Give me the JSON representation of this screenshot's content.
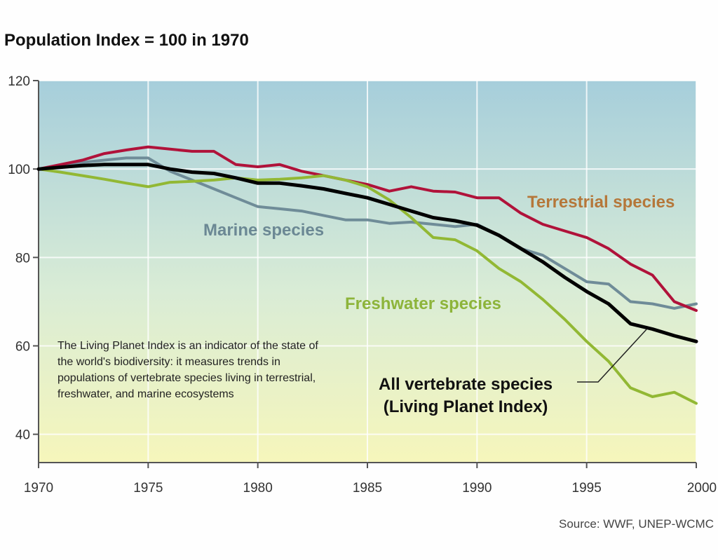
{
  "title": "Population Index = 100 in 1970",
  "source": "Source: WWF, UNEP-WCMC",
  "note": "The Living Planet Index is an indicator of the state of the world's biodiversity: it measures trends in populations of vertebrate species living in terrestrial, freshwater, and marine ecosystems",
  "labels": {
    "terrestrial": "Terrestrial species",
    "marine": "Marine species",
    "freshwater": "Freshwater species",
    "all_line1": "All vertebrate species",
    "all_line2": "(Living Planet Index)"
  },
  "chart_data": {
    "type": "line",
    "title": "Population Index = 100 in 1970",
    "xlabel": "",
    "ylabel": "",
    "xlim": [
      1970,
      2000
    ],
    "ylim": [
      33.6,
      120
    ],
    "xticks": [
      1970,
      1975,
      1980,
      1985,
      1990,
      1995,
      2000
    ],
    "yticks": [
      40,
      60,
      80,
      100,
      120
    ],
    "grid": true,
    "x": [
      1970,
      1971,
      1972,
      1973,
      1974,
      1975,
      1976,
      1977,
      1978,
      1979,
      1980,
      1981,
      1982,
      1983,
      1984,
      1985,
      1986,
      1987,
      1988,
      1989,
      1990,
      1991,
      1992,
      1993,
      1994,
      1995,
      1996,
      1997,
      1998,
      1999,
      2000
    ],
    "series": [
      {
        "name": "Terrestrial species",
        "color": "#b0123a",
        "values": [
          100,
          101,
          102,
          103.5,
          104.3,
          105,
          104.5,
          104,
          104,
          101,
          100.5,
          101,
          99.5,
          98.5,
          97.5,
          96.5,
          95,
          96,
          95,
          94.8,
          93.5,
          93.5,
          90,
          87.5,
          86,
          84.5,
          82,
          78.5,
          76,
          70,
          68
        ]
      },
      {
        "name": "Marine species",
        "color": "#6f8c98",
        "values": [
          100,
          100.8,
          101.5,
          102,
          102.5,
          102.5,
          99.5,
          97.5,
          95.5,
          93.5,
          91.5,
          91,
          90.5,
          89.5,
          88.5,
          88.5,
          87.7,
          88,
          87.5,
          87,
          87.5,
          85,
          82,
          80.5,
          77.5,
          74.5,
          74,
          70,
          69.5,
          68.5,
          69.5
        ]
      },
      {
        "name": "Freshwater species",
        "color": "#92b834",
        "values": [
          100,
          99.3,
          98.5,
          97.7,
          96.8,
          96,
          97,
          97.2,
          97.5,
          98,
          97.5,
          97.7,
          98,
          98.5,
          97.5,
          96,
          93,
          89,
          84.5,
          84,
          81.5,
          77.5,
          74.5,
          70.5,
          66,
          61,
          56.5,
          50.5,
          48.5,
          49.5,
          47
        ]
      },
      {
        "name": "All vertebrate species (Living Planet Index)",
        "color": "#000000",
        "values": [
          100,
          100.4,
          100.8,
          101,
          101,
          101,
          100,
          99.3,
          99,
          98,
          96.8,
          96.8,
          96.2,
          95.5,
          94.5,
          93.5,
          92,
          90.5,
          89,
          88.3,
          87.3,
          85,
          82,
          79,
          75.5,
          72.3,
          69.5,
          65,
          63.8,
          62.3,
          61
        ]
      }
    ]
  }
}
